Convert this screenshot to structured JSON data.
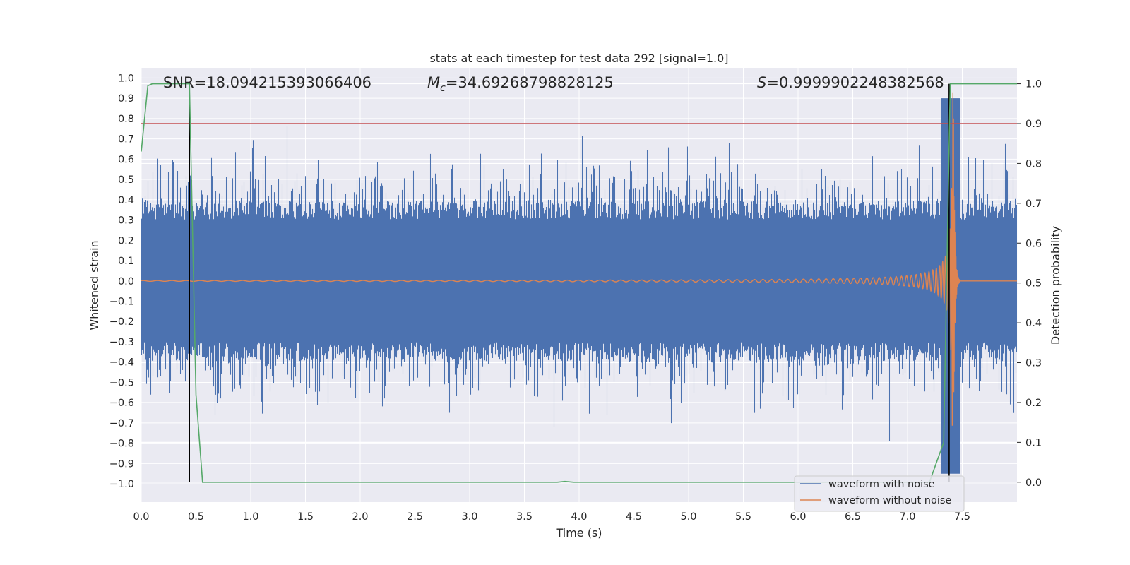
{
  "chart_data": {
    "type": "line",
    "title": "stats at each timestep for test data 292 [signal=1.0]",
    "xlabel": "Time (s)",
    "ylabel_left": "Whitened strain",
    "ylabel_right": "Detection probability",
    "xlim": [
      0.0,
      8.0
    ],
    "ylim_left": [
      -1.09,
      1.05
    ],
    "ylim_right": [
      -0.05,
      1.04
    ],
    "x_ticks": [
      "0.0",
      "0.5",
      "1.0",
      "1.5",
      "2.0",
      "2.5",
      "3.0",
      "3.5",
      "4.0",
      "4.5",
      "5.0",
      "5.5",
      "6.0",
      "6.5",
      "7.0",
      "7.5"
    ],
    "y_left_ticks": [
      "1.0",
      "0.9",
      "0.8",
      "0.7",
      "0.6",
      "0.5",
      "0.4",
      "0.3",
      "0.2",
      "0.1",
      "0.0",
      "−0.1",
      "−0.2",
      "−0.3",
      "−0.4",
      "−0.5",
      "−0.6",
      "−0.7",
      "−0.8",
      "−0.9",
      "−1.0"
    ],
    "y_right_ticks": [
      "1.0",
      "0.9",
      "0.8",
      "0.7",
      "0.6",
      "0.5",
      "0.4",
      "0.3",
      "0.2",
      "0.1",
      "0.0"
    ],
    "annotations": {
      "snr": "SNR=18.094215393066406",
      "mc_symbol": "M",
      "mc_subscript": "c",
      "mc_value": "=34.69268798828125",
      "s_symbol": "S",
      "s_value": "=0.9999902248382568"
    },
    "series": [
      {
        "name": "waveform with noise",
        "color": "#4c72b0",
        "kind": "noise",
        "amplitude_core": 0.42,
        "amplitude_peak": 0.79
      },
      {
        "name": "waveform without noise",
        "color": "#dd8452",
        "kind": "chirp",
        "merger_time": 7.42
      },
      {
        "name": "detection probability",
        "color": "#55a868",
        "kind": "probability",
        "x": [
          0.0,
          0.06,
          0.1,
          0.2,
          0.3,
          0.44,
          0.5,
          0.56,
          1.0,
          2.0,
          3.0,
          3.8,
          3.87,
          3.95,
          4.5,
          5.5,
          6.5,
          7.2,
          7.33,
          7.39,
          7.43,
          7.5,
          8.0
        ],
        "y": [
          0.83,
          0.995,
          1.0,
          1.0,
          1.0,
          1.0,
          0.22,
          0.0,
          0.0,
          0.0,
          0.0,
          0.0,
          0.002,
          0.0,
          0.0,
          0.0,
          0.0,
          0.0,
          0.1,
          1.0,
          1.0,
          1.0,
          1.0
        ]
      }
    ],
    "threshold": {
      "value": 0.9,
      "color": "#c44e52"
    },
    "vertical_markers": [
      0.44,
      7.38
    ],
    "grid": true,
    "legend": {
      "position": "lower-right",
      "entries": [
        "waveform with noise",
        "waveform without noise"
      ]
    }
  }
}
